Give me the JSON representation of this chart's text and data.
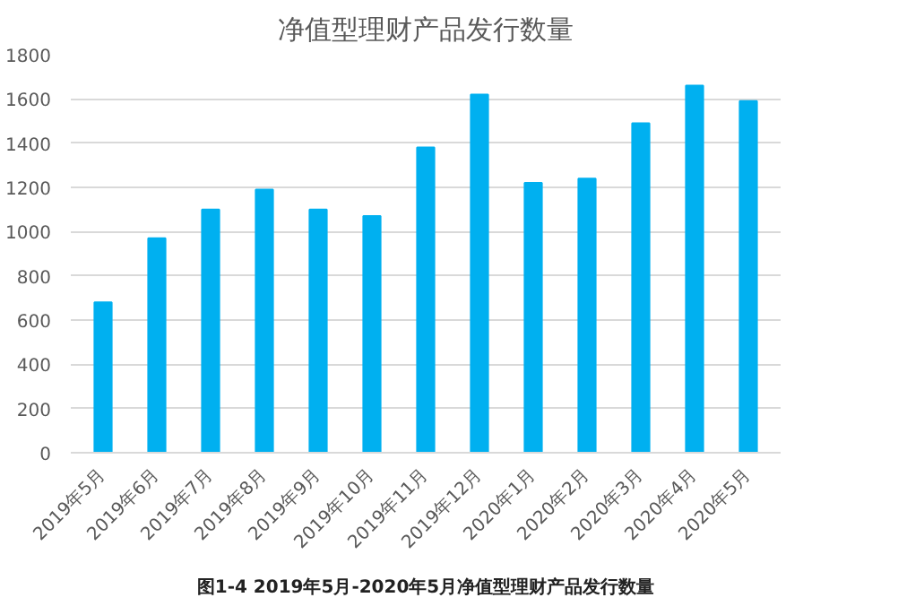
{
  "chart_data": {
    "type": "bar",
    "title": "净值型理财产品发行数量",
    "categories": [
      "2019年5月",
      "2019年6月",
      "2019年7月",
      "2019年8月",
      "2019年9月",
      "2019年10月",
      "2019年11月",
      "2019年12月",
      "2020年1月",
      "2020年2月",
      "2020年3月",
      "2020年4月",
      "2020年5月"
    ],
    "values": [
      680,
      970,
      1100,
      1190,
      1100,
      1070,
      1380,
      1620,
      1220,
      1240,
      1490,
      1660,
      1590
    ],
    "color": "#00b0f0",
    "ylim": [
      0,
      1800
    ],
    "yticks": [
      0,
      200,
      400,
      600,
      800,
      1000,
      1200,
      1400,
      1600,
      1800
    ],
    "grid": "y",
    "annotations": [
      "图1-4 2019年5月-2020年5月净值型理财产品发行数量"
    ]
  }
}
